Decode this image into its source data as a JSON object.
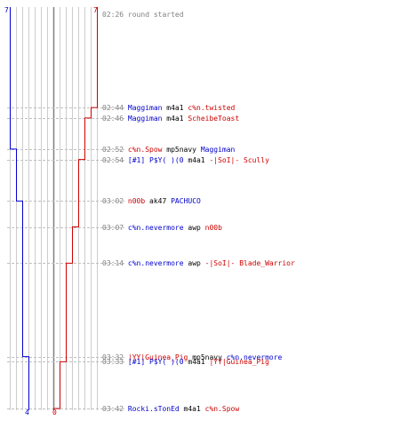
{
  "colors": {
    "blue": "#0000cc",
    "red": "#cc0000",
    "time": "#808080",
    "grid": "#cccccc",
    "center": "#808080",
    "dash": "#c0c0c0",
    "text": "#000000"
  },
  "score": {
    "blue_start": "7",
    "red_start": "7",
    "blue_end": "4",
    "red_end": "0"
  },
  "events": [
    {
      "time": "02:26",
      "killer": "round started",
      "killer_team": "none",
      "weapon": "",
      "victim": "",
      "victim_team": "none",
      "blue": 7,
      "red": 7
    },
    {
      "time": "02:44",
      "killer": "Maggiman",
      "killer_team": "blue",
      "weapon": "m4a1",
      "victim": "c%n.twisted",
      "victim_team": "red",
      "blue": 7,
      "red": 6
    },
    {
      "time": "02:46",
      "killer": "Maggiman",
      "killer_team": "blue",
      "weapon": "m4a1",
      "victim": "ScheibeToast",
      "victim_team": "red",
      "blue": 7,
      "red": 5
    },
    {
      "time": "02:52",
      "killer": "c%n.Spow",
      "killer_team": "red",
      "weapon": "mp5navy",
      "victim": "Maggiman",
      "victim_team": "blue",
      "blue": 6,
      "red": 5
    },
    {
      "time": "02:54",
      "killer": "[#1] P$Y( )(0",
      "killer_team": "blue",
      "weapon": "m4a1",
      "victim": "-|SoI|- Scully",
      "victim_team": "red",
      "blue": 6,
      "red": 4
    },
    {
      "time": "03:02",
      "killer": "n00b",
      "killer_team": "red",
      "weapon": "ak47",
      "victim": "PACHUCO",
      "victim_team": "blue",
      "blue": 5,
      "red": 4
    },
    {
      "time": "03:07",
      "killer": "c%n.nevermore",
      "killer_team": "blue",
      "weapon": "awp",
      "victim": "n00b",
      "victim_team": "red",
      "blue": 5,
      "red": 3
    },
    {
      "time": "03:14",
      "killer": "c%n.nevermore",
      "killer_team": "blue",
      "weapon": "awp",
      "victim": "-|SoI|- Blade_Warrior",
      "victim_team": "red",
      "blue": 5,
      "red": 2
    },
    {
      "time": "03:32",
      "killer": "|YY|Guinea_Pig",
      "killer_team": "red",
      "weapon": "mp5navy",
      "victim": "c%n.nevermore",
      "victim_team": "blue",
      "blue": 4,
      "red": 2
    },
    {
      "time": "03:33",
      "killer": "[#1] P$Y( )(0",
      "killer_team": "blue",
      "weapon": "m4a1",
      "victim": "|YY|Guinea_Pig",
      "victim_team": "red",
      "blue": 4,
      "red": 1
    },
    {
      "time": "03:42",
      "killer": "Rocki.sTonEd",
      "killer_team": "blue",
      "weapon": "m4a1",
      "victim": "c%n.Spow",
      "victim_team": "red",
      "blue": 4,
      "red": 0
    }
  ]
}
